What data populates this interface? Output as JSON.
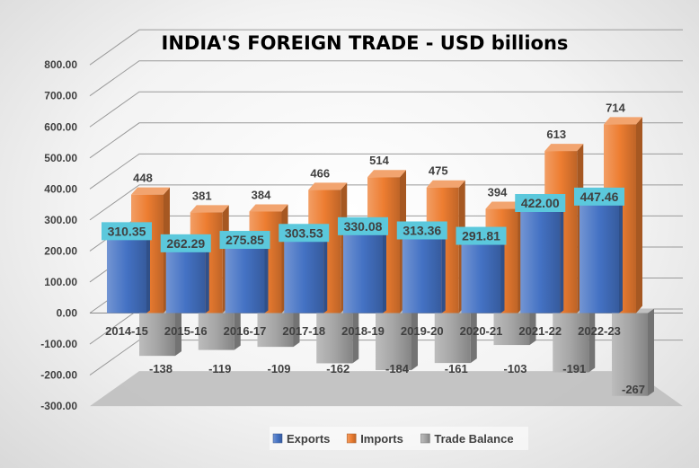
{
  "chart_data": {
    "type": "bar",
    "title": "INDIA'S FOREIGN TRADE - USD billions",
    "categories": [
      "2014-15",
      "2015-16",
      "2016-17",
      "2017-18",
      "2018-19",
      "2019-20",
      "2020-21",
      "2021-22",
      "2022-23"
    ],
    "series": [
      {
        "name": "Exports",
        "values": [
          310.35,
          262.29,
          275.85,
          303.53,
          330.08,
          313.36,
          291.81,
          422.0,
          447.46
        ],
        "labels": [
          "310.35",
          "262.29",
          "275.85",
          "303.53",
          "330.08",
          "313.36",
          "291.81",
          "422.00",
          "447.46"
        ],
        "color": "#4472c4"
      },
      {
        "name": "Imports",
        "values": [
          448,
          381,
          384,
          466,
          514,
          475,
          394,
          613,
          714
        ],
        "labels": [
          "448",
          "381",
          "384",
          "466",
          "514",
          "475",
          "394",
          "613",
          "714"
        ],
        "color": "#ed7d31"
      },
      {
        "name": "Trade Balance",
        "values": [
          -138,
          -119,
          -109,
          -162,
          -184,
          -161,
          -103,
          -191,
          -267
        ],
        "labels": [
          "-138",
          "-119",
          "-109",
          "-162",
          "-184",
          "-161",
          "-103",
          "-191",
          "-267"
        ],
        "color": "#a5a5a5"
      }
    ],
    "yticks": [
      "800.00",
      "700.00",
      "600.00",
      "500.00",
      "400.00",
      "300.00",
      "200.00",
      "100.00",
      "0.00",
      "-100.00",
      "-200.00",
      "-300.00"
    ],
    "ylim": [
      -300,
      800
    ],
    "grid": true,
    "legend": "bottom",
    "label_highlight_color": "#5bc8dc"
  }
}
